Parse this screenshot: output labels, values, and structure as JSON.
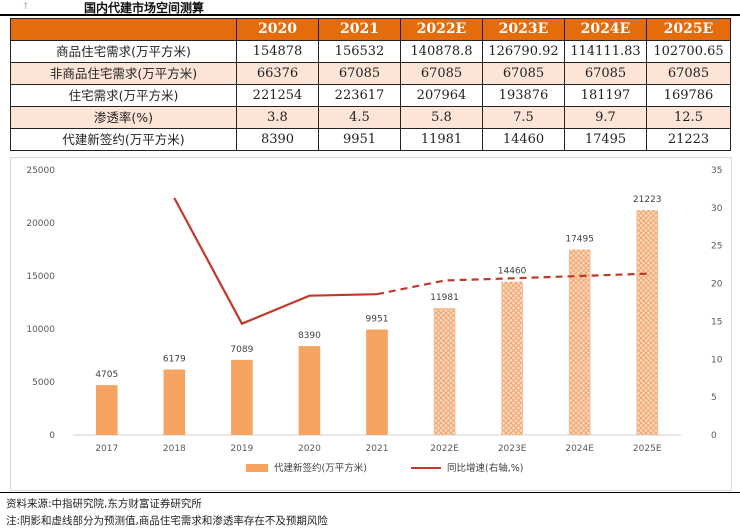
{
  "page": {
    "corner_mark": "↑",
    "title": "国内代建市场空间测算"
  },
  "table": {
    "headers": [
      "",
      "2020",
      "2021",
      "2022E",
      "2023E",
      "2024E",
      "2025E"
    ],
    "rows": [
      {
        "label": "商品住宅需求(万平方米)",
        "values": [
          "154878",
          "156532",
          "140878.8",
          "126790.92",
          "114111.83",
          "102700.65"
        ]
      },
      {
        "label": "非商品住宅需求(万平方米)",
        "values": [
          "66376",
          "67085",
          "67085",
          "67085",
          "67085",
          "67085"
        ]
      },
      {
        "label": "住宅需求(万平方米)",
        "values": [
          "221254",
          "223617",
          "207964",
          "193876",
          "181197",
          "169786"
        ]
      },
      {
        "label": "渗透率(%)",
        "values": [
          "3.8",
          "4.5",
          "5.8",
          "7.5",
          "9.7",
          "12.5"
        ]
      },
      {
        "label": "代建新签约(万平方米)",
        "values": [
          "8390",
          "9951",
          "11981",
          "14460",
          "17495",
          "21223"
        ]
      }
    ]
  },
  "chart_data": {
    "type": "bar",
    "categories": [
      "2017",
      "2018",
      "2019",
      "2020",
      "2021",
      "2022E",
      "2023E",
      "2024E",
      "2025E"
    ],
    "series": [
      {
        "name": "代建新签约(万平方米)",
        "type": "bar",
        "axis": "left",
        "values": [
          4705,
          6179,
          7089,
          8390,
          9951,
          11981,
          14460,
          17495,
          21223
        ],
        "data_labels": [
          "4705",
          "6179",
          "7089",
          "8390",
          "9951",
          "11981",
          "14460",
          "17495",
          "21223"
        ],
        "forecast_from_index": 5
      },
      {
        "name": "同比增速(右轴,%)",
        "type": "line",
        "axis": "right",
        "values": [
          null,
          31.3,
          14.7,
          18.4,
          18.6,
          20.4,
          20.7,
          21.0,
          21.3
        ],
        "forecast_from_index": 5
      }
    ],
    "y_left": {
      "min": 0,
      "max": 25000,
      "ticks": [
        "0",
        "5000",
        "10000",
        "15000",
        "20000",
        "25000"
      ]
    },
    "y_right": {
      "min": 0,
      "max": 35,
      "ticks": [
        "0",
        "5",
        "10",
        "15",
        "20",
        "25",
        "30",
        "35"
      ]
    },
    "legend_position": "bottom",
    "colors": {
      "bar": "#f4a460",
      "bar_forecast": "#f6b98a",
      "line": "#c0392b"
    }
  },
  "footnotes": {
    "source": "资料来源:中指研究院,东方财富证券研究所",
    "note": "注:阴影和虚线部分为预测值,商品住宅需求和渗透率存在不及预期风险"
  }
}
